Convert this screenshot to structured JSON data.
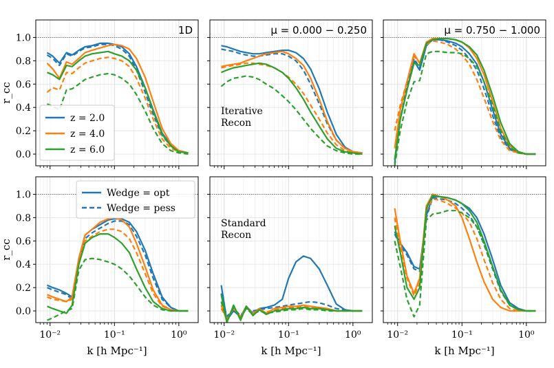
{
  "chart_data": {
    "type": "line",
    "xlabel": "k   [h Mpc⁻¹]",
    "ylabel": "r_cc",
    "xscale": "log",
    "xlim": [
      0.006,
      2.0
    ],
    "ylim": [
      -0.1,
      1.15
    ],
    "xticks": [
      "10⁻²",
      "10⁻¹",
      "10⁰"
    ],
    "yticks": [
      "0.0",
      "0.2",
      "0.4",
      "0.6",
      "0.8",
      "1.0"
    ],
    "reference_line": 1.0,
    "grid": true,
    "colors": {
      "z2": "#1f77b4",
      "z4": "#ff7f0e",
      "z6": "#2ca02c"
    },
    "legend_redshift": {
      "placement": "lower-left",
      "entries": [
        "z = 2.0",
        "z = 4.0",
        "z = 6.0"
      ]
    },
    "legend_wedge": {
      "placement": "upper-right",
      "entries": [
        "Wedge = opt",
        "Wedge = pess"
      ]
    },
    "row_annotations": [
      "Iterative\nRecon",
      "Standard\nRecon"
    ],
    "k": [
      0.009,
      0.011,
      0.014,
      0.018,
      0.022,
      0.028,
      0.035,
      0.045,
      0.06,
      0.08,
      0.1,
      0.13,
      0.17,
      0.22,
      0.3,
      0.4,
      0.55,
      0.75,
      1.0,
      1.4
    ],
    "panels": [
      {
        "title": "1D",
        "series": [
          {
            "z": "z2",
            "wedge": "opt",
            "values": [
              0.87,
              0.84,
              0.78,
              0.87,
              0.85,
              0.89,
              0.92,
              0.93,
              0.95,
              0.95,
              0.94,
              0.92,
              0.86,
              0.75,
              0.57,
              0.38,
              0.18,
              0.08,
              0.03,
              0.01
            ]
          },
          {
            "z": "z2",
            "wedge": "pess",
            "values": [
              0.85,
              0.82,
              0.76,
              0.86,
              0.84,
              0.88,
              0.91,
              0.92,
              0.94,
              0.94,
              0.93,
              0.9,
              0.84,
              0.72,
              0.53,
              0.34,
              0.16,
              0.07,
              0.03,
              0.01
            ]
          },
          {
            "z": "z4",
            "wedge": "opt",
            "values": [
              0.78,
              0.73,
              0.65,
              0.79,
              0.77,
              0.82,
              0.87,
              0.89,
              0.91,
              0.93,
              0.94,
              0.93,
              0.9,
              0.82,
              0.66,
              0.45,
              0.22,
              0.09,
              0.03,
              0.01
            ]
          },
          {
            "z": "z4",
            "wedge": "pess",
            "values": [
              0.53,
              0.57,
              0.55,
              0.7,
              0.69,
              0.74,
              0.78,
              0.8,
              0.82,
              0.83,
              0.82,
              0.8,
              0.75,
              0.65,
              0.48,
              0.3,
              0.13,
              0.05,
              0.02,
              0.01
            ]
          },
          {
            "z": "z6",
            "wedge": "opt",
            "values": [
              0.7,
              0.68,
              0.64,
              0.76,
              0.75,
              0.8,
              0.84,
              0.86,
              0.87,
              0.88,
              0.86,
              0.84,
              0.8,
              0.72,
              0.57,
              0.37,
              0.17,
              0.07,
              0.02,
              0.01
            ]
          },
          {
            "z": "z6",
            "wedge": "pess",
            "values": [
              0.43,
              0.41,
              0.38,
              0.55,
              0.56,
              0.6,
              0.64,
              0.66,
              0.68,
              0.69,
              0.68,
              0.65,
              0.6,
              0.51,
              0.37,
              0.22,
              0.09,
              0.03,
              0.01,
              0.0
            ]
          }
        ]
      },
      {
        "title": "μ = 0.000 − 0.250",
        "series": [
          {
            "z": "z2",
            "wedge": "opt",
            "values": [
              0.93,
              0.92,
              0.9,
              0.88,
              0.87,
              0.86,
              0.86,
              0.87,
              0.88,
              0.89,
              0.89,
              0.87,
              0.82,
              0.73,
              0.56,
              0.36,
              0.17,
              0.06,
              0.02,
              0.01
            ]
          },
          {
            "z": "z2",
            "wedge": "pess",
            "values": [
              0.9,
              0.89,
              0.88,
              0.86,
              0.85,
              0.84,
              0.84,
              0.85,
              0.86,
              0.86,
              0.84,
              0.8,
              0.72,
              0.6,
              0.43,
              0.26,
              0.12,
              0.05,
              0.02,
              0.01
            ]
          },
          {
            "z": "z4",
            "wedge": "opt",
            "values": [
              0.75,
              0.76,
              0.77,
              0.78,
              0.8,
              0.82,
              0.84,
              0.86,
              0.87,
              0.88,
              0.86,
              0.82,
              0.76,
              0.65,
              0.47,
              0.28,
              0.12,
              0.05,
              0.02,
              0.01
            ]
          },
          {
            "z": "z4",
            "wedge": "pess",
            "values": [
              0.74,
              0.75,
              0.76,
              0.77,
              0.78,
              0.78,
              0.77,
              0.76,
              0.74,
              0.7,
              0.66,
              0.6,
              0.52,
              0.42,
              0.3,
              0.18,
              0.08,
              0.03,
              0.01,
              0.0
            ]
          },
          {
            "z": "z6",
            "wedge": "opt",
            "values": [
              0.7,
              0.72,
              0.74,
              0.75,
              0.76,
              0.77,
              0.78,
              0.77,
              0.74,
              0.7,
              0.65,
              0.57,
              0.47,
              0.36,
              0.24,
              0.13,
              0.05,
              0.02,
              0.01,
              0.0
            ]
          },
          {
            "z": "z6",
            "wedge": "pess",
            "values": [
              0.58,
              0.62,
              0.65,
              0.66,
              0.67,
              0.66,
              0.64,
              0.6,
              0.56,
              0.5,
              0.45,
              0.38,
              0.3,
              0.22,
              0.14,
              0.07,
              0.03,
              0.01,
              0.0,
              0.0
            ]
          }
        ]
      },
      {
        "title": "μ = 0.750 − 1.000",
        "series": [
          {
            "z": "z2",
            "wedge": "opt",
            "values": [
              -0.08,
              0.3,
              0.55,
              0.8,
              0.72,
              0.93,
              0.98,
              0.98,
              0.97,
              0.95,
              0.92,
              0.86,
              0.77,
              0.62,
              0.38,
              0.17,
              0.05,
              0.01,
              0.0,
              0.0
            ]
          },
          {
            "z": "z2",
            "wedge": "pess",
            "values": [
              -0.05,
              0.3,
              0.58,
              0.82,
              0.74,
              0.93,
              0.98,
              0.98,
              0.96,
              0.93,
              0.89,
              0.82,
              0.72,
              0.56,
              0.33,
              0.14,
              0.04,
              0.01,
              0.0,
              0.0
            ]
          },
          {
            "z": "z4",
            "wedge": "opt",
            "values": [
              0.05,
              0.38,
              0.62,
              0.86,
              0.78,
              0.96,
              0.99,
              0.99,
              0.99,
              0.98,
              0.96,
              0.91,
              0.82,
              0.68,
              0.45,
              0.22,
              0.07,
              0.02,
              0.0,
              0.0
            ]
          },
          {
            "z": "z4",
            "wedge": "pess",
            "values": [
              0.2,
              0.42,
              0.62,
              0.84,
              0.78,
              0.94,
              0.97,
              0.96,
              0.94,
              0.9,
              0.85,
              0.77,
              0.64,
              0.48,
              0.28,
              0.12,
              0.03,
              0.01,
              0.0,
              0.0
            ]
          },
          {
            "z": "z6",
            "wedge": "opt",
            "values": [
              -0.05,
              0.3,
              0.55,
              0.78,
              0.76,
              0.95,
              0.98,
              0.99,
              0.99,
              0.98,
              0.96,
              0.92,
              0.85,
              0.72,
              0.5,
              0.27,
              0.09,
              0.02,
              0.0,
              0.0
            ]
          },
          {
            "z": "z6",
            "wedge": "pess",
            "values": [
              -0.1,
              0.2,
              0.45,
              0.62,
              0.63,
              0.86,
              0.88,
              0.88,
              0.87,
              0.87,
              0.86,
              0.82,
              0.75,
              0.62,
              0.42,
              0.2,
              0.06,
              0.01,
              0.0,
              0.0
            ]
          }
        ]
      },
      {
        "title": "",
        "series": [
          {
            "z": "z2",
            "wedge": "opt",
            "values": [
              0.22,
              0.2,
              0.18,
              0.15,
              0.12,
              0.45,
              0.65,
              0.7,
              0.74,
              0.78,
              0.79,
              0.79,
              0.76,
              0.68,
              0.52,
              0.32,
              0.12,
              0.03,
              0.0,
              0.0
            ]
          },
          {
            "z": "z2",
            "wedge": "pess",
            "values": [
              0.2,
              0.18,
              0.16,
              0.14,
              0.1,
              0.42,
              0.62,
              0.67,
              0.71,
              0.75,
              0.77,
              0.77,
              0.74,
              0.64,
              0.48,
              0.28,
              0.1,
              0.03,
              0.0,
              0.0
            ]
          },
          {
            "z": "z4",
            "wedge": "opt",
            "values": [
              0.14,
              0.12,
              0.1,
              0.08,
              0.12,
              0.45,
              0.65,
              0.7,
              0.76,
              0.79,
              0.8,
              0.78,
              0.72,
              0.58,
              0.38,
              0.18,
              0.05,
              0.01,
              0.0,
              0.0
            ]
          },
          {
            "z": "z4",
            "wedge": "pess",
            "values": [
              0.12,
              0.1,
              0.09,
              0.08,
              0.1,
              0.42,
              0.6,
              0.64,
              0.68,
              0.7,
              0.7,
              0.68,
              0.62,
              0.5,
              0.32,
              0.15,
              0.04,
              0.01,
              0.0,
              0.0
            ]
          },
          {
            "z": "z6",
            "wedge": "opt",
            "values": [
              0.04,
              0.02,
              0.0,
              -0.02,
              0.05,
              0.4,
              0.58,
              0.63,
              0.66,
              0.66,
              0.63,
              0.58,
              0.5,
              0.36,
              0.2,
              0.08,
              0.02,
              0.0,
              0.0,
              0.0
            ]
          },
          {
            "z": "z6",
            "wedge": "pess",
            "values": [
              -0.08,
              -0.06,
              -0.03,
              0.0,
              0.02,
              0.35,
              0.44,
              0.45,
              0.44,
              0.42,
              0.4,
              0.36,
              0.3,
              0.22,
              0.12,
              0.05,
              0.01,
              0.0,
              0.0,
              0.0
            ]
          }
        ]
      },
      {
        "title": "",
        "series": [
          {
            "z": "z2",
            "wedge": "opt",
            "values": [
              0.22,
              -0.08,
              0.0,
              -0.05,
              0.04,
              -0.02,
              0.02,
              0.03,
              0.05,
              0.1,
              0.28,
              0.42,
              0.47,
              0.45,
              0.36,
              0.22,
              0.06,
              0.01,
              0.0,
              0.0
            ]
          },
          {
            "z": "z2",
            "wedge": "pess",
            "values": [
              0.15,
              -0.05,
              0.02,
              -0.04,
              0.02,
              0.0,
              0.01,
              0.02,
              0.03,
              0.04,
              0.05,
              0.06,
              0.07,
              0.08,
              0.07,
              0.05,
              0.02,
              0.01,
              0.0,
              0.0
            ]
          },
          {
            "z": "z4",
            "wedge": "opt",
            "values": [
              0.05,
              -0.08,
              0.03,
              -0.06,
              0.04,
              -0.03,
              0.02,
              -0.02,
              0.02,
              0.03,
              0.04,
              0.04,
              0.05,
              0.04,
              0.03,
              0.02,
              0.0,
              0.0,
              0.0,
              0.0
            ]
          },
          {
            "z": "z4",
            "wedge": "pess",
            "values": [
              0.02,
              -0.06,
              0.02,
              -0.05,
              0.03,
              -0.02,
              0.01,
              -0.01,
              0.01,
              0.02,
              0.03,
              0.03,
              0.04,
              0.03,
              0.02,
              0.01,
              0.0,
              0.0,
              0.0,
              0.0
            ]
          },
          {
            "z": "z6",
            "wedge": "opt",
            "values": [
              0.14,
              -0.1,
              0.05,
              -0.08,
              0.04,
              -0.04,
              0.01,
              -0.03,
              0.0,
              0.01,
              0.02,
              0.02,
              0.03,
              0.02,
              0.02,
              0.01,
              0.0,
              0.0,
              0.0,
              0.0
            ]
          },
          {
            "z": "z6",
            "wedge": "pess",
            "values": [
              0.08,
              -0.08,
              0.03,
              -0.06,
              0.02,
              -0.03,
              0.0,
              -0.02,
              -0.01,
              0.0,
              0.01,
              0.01,
              0.02,
              0.01,
              0.01,
              0.0,
              0.0,
              0.0,
              0.0,
              0.0
            ]
          }
        ]
      },
      {
        "title": "",
        "series": [
          {
            "z": "z2",
            "wedge": "opt",
            "values": [
              0.68,
              0.58,
              0.5,
              0.38,
              0.36,
              0.82,
              0.98,
              0.98,
              0.97,
              0.95,
              0.92,
              0.88,
              0.8,
              0.66,
              0.44,
              0.22,
              0.07,
              0.02,
              0.0,
              0.0
            ]
          },
          {
            "z": "z2",
            "wedge": "pess",
            "values": [
              0.66,
              0.56,
              0.48,
              0.36,
              0.34,
              0.8,
              0.97,
              0.96,
              0.95,
              0.92,
              0.88,
              0.82,
              0.72,
              0.57,
              0.36,
              0.17,
              0.05,
              0.01,
              0.0,
              0.0
            ]
          },
          {
            "z": "z4",
            "wedge": "opt",
            "values": [
              0.88,
              0.6,
              0.3,
              0.15,
              0.28,
              0.9,
              1.0,
              0.98,
              0.95,
              0.9,
              0.8,
              0.62,
              0.42,
              0.25,
              0.1,
              0.03,
              0.0,
              0.0,
              0.0,
              0.0
            ]
          },
          {
            "z": "z4",
            "wedge": "pess",
            "values": [
              0.8,
              0.55,
              0.28,
              0.13,
              0.24,
              0.86,
              0.96,
              0.95,
              0.92,
              0.88,
              0.84,
              0.76,
              0.62,
              0.44,
              0.24,
              0.1,
              0.02,
              0.0,
              0.0,
              0.0
            ]
          },
          {
            "z": "z6",
            "wedge": "opt",
            "values": [
              0.73,
              0.5,
              0.2,
              0.1,
              0.2,
              0.88,
              0.99,
              0.98,
              0.97,
              0.95,
              0.92,
              0.86,
              0.76,
              0.6,
              0.38,
              0.18,
              0.05,
              0.01,
              0.0,
              0.0
            ]
          },
          {
            "z": "z6",
            "wedge": "pess",
            "values": [
              0.6,
              0.38,
              0.1,
              -0.05,
              0.05,
              0.78,
              0.83,
              0.84,
              0.86,
              0.86,
              0.84,
              0.8,
              0.72,
              0.58,
              0.38,
              0.18,
              0.05,
              0.01,
              0.0,
              0.0
            ]
          }
        ]
      }
    ]
  }
}
